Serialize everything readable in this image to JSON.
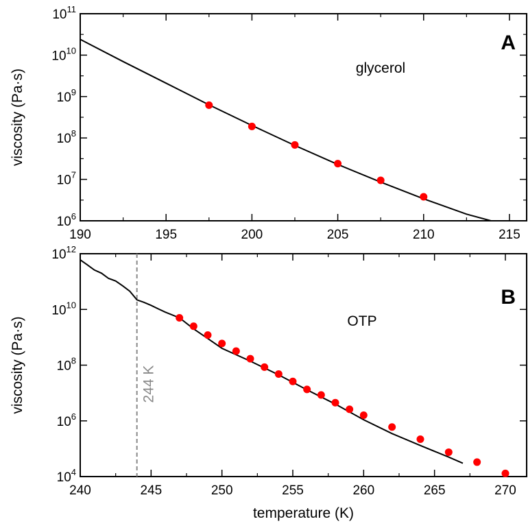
{
  "chart_data": [
    {
      "type": "scatter",
      "panel_label": "A",
      "annotation": "glycerol",
      "xlabel": "",
      "ylabel": "viscosity (Pa·s)",
      "xlim": [
        190,
        216
      ],
      "ylim": [
        1000000.0,
        100000000000.0
      ],
      "yscale": "log",
      "grid": false,
      "xticks": [
        190,
        195,
        200,
        205,
        210,
        215
      ],
      "xtick_labels": [
        "190",
        "195",
        "200",
        "205",
        "210",
        "215"
      ],
      "yticks": [
        1000000.0,
        10000000.0,
        100000000.0,
        1000000000.0,
        10000000000.0,
        100000000000.0
      ],
      "ytick_labels": [
        {
          "base": "10",
          "exp": "6"
        },
        {
          "base": "10",
          "exp": "7"
        },
        {
          "base": "10",
          "exp": "8"
        },
        {
          "base": "10",
          "exp": "9"
        },
        {
          "base": "10",
          "exp": "10"
        },
        {
          "base": "10",
          "exp": "11"
        }
      ],
      "series": [
        {
          "kind": "line",
          "color": "#000000",
          "x": [
            190,
            192.5,
            195,
            197.5,
            200,
            202.5,
            205,
            207.5,
            210,
            212.5,
            214
          ],
          "y": [
            24000000000.0,
            7000000000.0,
            2100000000.0,
            630000000.0,
            200000000.0,
            66000000.0,
            23000000.0,
            8600000.0,
            3400000.0,
            1450000.0,
            980000.0
          ]
        },
        {
          "kind": "scatter",
          "color": "#ff0000",
          "x": [
            197.5,
            200,
            202.5,
            205,
            207.5,
            210
          ],
          "y": [
            620000000.0,
            190000000.0,
            68000000.0,
            24000000.0,
            9500000.0,
            3800000.0
          ]
        }
      ]
    },
    {
      "type": "scatter",
      "panel_label": "B",
      "annotation": "OTP",
      "xlabel": "temperature (K)",
      "ylabel": "viscosity (Pa·s)",
      "xlim": [
        240,
        271.5
      ],
      "ylim": [
        10000.0,
        1000000000000.0
      ],
      "yscale": "log",
      "grid": false,
      "xticks": [
        240,
        245,
        250,
        255,
        260,
        265,
        270
      ],
      "xtick_labels": [
        "240",
        "245",
        "250",
        "255",
        "260",
        "265",
        "270"
      ],
      "yticks": [
        10000.0,
        1000000.0,
        100000000.0,
        10000000000.0,
        1000000000000.0
      ],
      "ytick_labels": [
        {
          "base": "10",
          "exp": "4"
        },
        {
          "base": "10",
          "exp": "6"
        },
        {
          "base": "10",
          "exp": "8"
        },
        {
          "base": "10",
          "exp": "10"
        },
        {
          "base": "10",
          "exp": "12"
        }
      ],
      "vline": {
        "x": 244,
        "label": "244 K",
        "color": "#888888"
      },
      "series": [
        {
          "kind": "line",
          "color": "#000000",
          "x": [
            240,
            240.5,
            241,
            241.5,
            242,
            242.5,
            243,
            243.5,
            244,
            244.5,
            245,
            245.5,
            246,
            247,
            248,
            249,
            250,
            252,
            254,
            256,
            258,
            260,
            262,
            264,
            266,
            267
          ],
          "y": [
            600000000000.0,
            400000000000.0,
            260000000000.0,
            200000000000.0,
            130000000000.0,
            105000000000.0,
            70000000000.0,
            45000000000.0,
            22000000000.0,
            18000000000.0,
            14000000000.0,
            10500000000.0,
            8000000000.0,
            5000000000.0,
            2000000000.0,
            900000000.0,
            400000000.0,
            140000000.0,
            45000000.0,
            13000000.0,
            4000000.0,
            1100000.0,
            350000.0,
            130000.0,
            50000.0,
            30000.0
          ]
        },
        {
          "kind": "scatter",
          "color": "#ff0000",
          "x": [
            247,
            248,
            249,
            250,
            251,
            252,
            253,
            254,
            255,
            256,
            257,
            258,
            259,
            260,
            262,
            264,
            266,
            268,
            270
          ],
          "y": [
            5000000000.0,
            2500000000.0,
            1200000000.0,
            600000000.0,
            320000000.0,
            170000000.0,
            85000000.0,
            48000000.0,
            26000000.0,
            13500000.0,
            8500000.0,
            4500000.0,
            2600000.0,
            1600000.0,
            600000.0,
            220000.0,
            75000.0,
            33000.0,
            13000.0
          ]
        }
      ]
    }
  ]
}
